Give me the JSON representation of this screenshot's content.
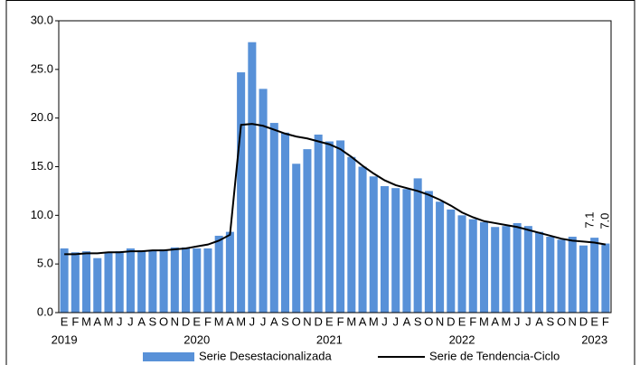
{
  "chart_data": {
    "type": "bar",
    "categories": [
      "E",
      "F",
      "M",
      "A",
      "M",
      "J",
      "J",
      "A",
      "S",
      "O",
      "N",
      "D",
      "E",
      "F",
      "M",
      "A",
      "M",
      "J",
      "J",
      "A",
      "S",
      "O",
      "N",
      "D",
      "E",
      "F",
      "M",
      "A",
      "M",
      "J",
      "J",
      "A",
      "S",
      "O",
      "N",
      "D",
      "E",
      "F",
      "M",
      "A",
      "M",
      "J",
      "J",
      "A",
      "S",
      "O",
      "N",
      "D",
      "E",
      "F"
    ],
    "year_labels": [
      "2019",
      null,
      null,
      null,
      null,
      null,
      null,
      null,
      null,
      null,
      null,
      null,
      "2020",
      null,
      null,
      null,
      null,
      null,
      null,
      null,
      null,
      null,
      null,
      null,
      "2021",
      null,
      null,
      null,
      null,
      null,
      null,
      null,
      null,
      null,
      null,
      null,
      "2022",
      null,
      null,
      null,
      null,
      null,
      null,
      null,
      null,
      null,
      null,
      null,
      "2023",
      null
    ],
    "series": [
      {
        "name": "Serie Desestacionalizada",
        "type": "bar",
        "color": "#5891d8",
        "values": [
          6.6,
          6.2,
          6.3,
          5.6,
          6.2,
          6.3,
          6.6,
          6.4,
          6.4,
          6.5,
          6.7,
          6.7,
          6.6,
          6.6,
          7.9,
          8.3,
          24.7,
          27.8,
          23.0,
          19.5,
          18.5,
          15.3,
          16.8,
          18.3,
          17.6,
          17.7,
          16.0,
          15.0,
          14.0,
          13.0,
          12.8,
          12.7,
          13.8,
          12.5,
          11.4,
          10.6,
          10.0,
          9.6,
          9.3,
          8.8,
          8.9,
          9.2,
          8.9,
          8.3,
          7.8,
          7.5,
          7.8,
          6.9,
          7.7,
          7.1
        ],
        "value_labels": [
          null,
          null,
          null,
          null,
          null,
          null,
          null,
          null,
          null,
          null,
          null,
          null,
          null,
          null,
          null,
          null,
          null,
          null,
          null,
          null,
          null,
          null,
          null,
          null,
          null,
          null,
          null,
          null,
          null,
          null,
          null,
          null,
          null,
          null,
          null,
          null,
          null,
          null,
          null,
          null,
          null,
          null,
          null,
          null,
          null,
          null,
          null,
          null,
          null,
          "7.1"
        ]
      },
      {
        "name": "Serie de Tendencia-Ciclo",
        "type": "line",
        "color": "#000000",
        "values": [
          6.0,
          6.0,
          6.1,
          6.1,
          6.2,
          6.2,
          6.3,
          6.3,
          6.4,
          6.4,
          6.5,
          6.6,
          6.8,
          7.0,
          7.4,
          8.0,
          19.3,
          19.4,
          19.2,
          18.8,
          18.4,
          18.1,
          17.9,
          17.6,
          17.3,
          16.8,
          16.0,
          15.1,
          14.3,
          13.6,
          13.1,
          12.8,
          12.5,
          12.1,
          11.6,
          11.0,
          10.3,
          9.8,
          9.4,
          9.2,
          9.0,
          8.8,
          8.5,
          8.2,
          7.9,
          7.6,
          7.4,
          7.3,
          7.2,
          7.0
        ],
        "value_labels": [
          null,
          null,
          null,
          null,
          null,
          null,
          null,
          null,
          null,
          null,
          null,
          null,
          null,
          null,
          null,
          null,
          null,
          null,
          null,
          null,
          null,
          null,
          null,
          null,
          null,
          null,
          null,
          null,
          null,
          null,
          null,
          null,
          null,
          null,
          null,
          null,
          null,
          null,
          null,
          null,
          null,
          null,
          null,
          null,
          null,
          null,
          null,
          null,
          null,
          "7.0"
        ]
      }
    ],
    "ylim": [
      0,
      30
    ],
    "yticks": [
      {
        "value": 0,
        "label": "0.0"
      },
      {
        "value": 5,
        "label": "5.0"
      },
      {
        "value": 10,
        "label": "10.0"
      },
      {
        "value": 15,
        "label": "15.0"
      },
      {
        "value": 20,
        "label": "20.0"
      },
      {
        "value": 25,
        "label": "25.0"
      },
      {
        "value": 30,
        "label": "30.0"
      }
    ],
    "grid": false,
    "legend": "bottom"
  }
}
